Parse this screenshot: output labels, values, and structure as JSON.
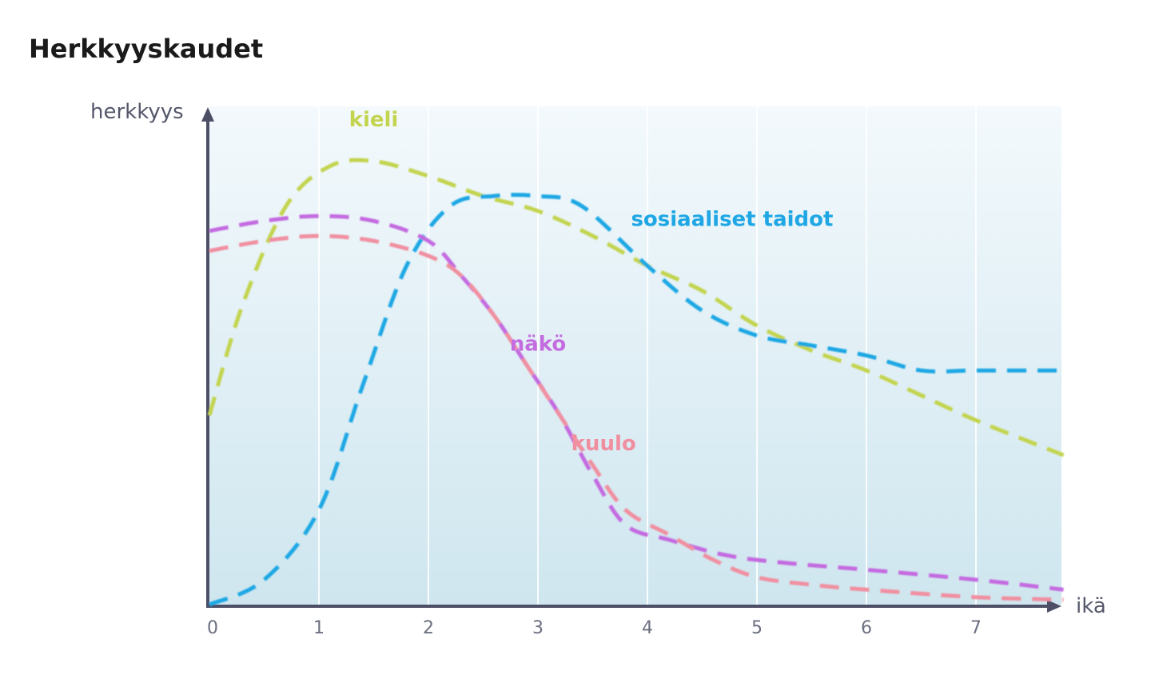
{
  "chart_data": {
    "type": "line",
    "title": "Herkkyyskaudet",
    "xlabel": "ikä",
    "ylabel": "herkkyys",
    "xlim": [
      0,
      7.8
    ],
    "ylim": [
      0,
      100
    ],
    "x_ticks": [
      "0",
      "1",
      "2",
      "3",
      "4",
      "5",
      "6",
      "7"
    ],
    "grid": true,
    "series": [
      {
        "name": "kieli",
        "color": "#c3d44f",
        "points": [
          [
            0,
            38
          ],
          [
            0.3,
            60
          ],
          [
            0.7,
            80
          ],
          [
            1.1,
            88
          ],
          [
            1.5,
            89
          ],
          [
            2,
            86
          ],
          [
            2.5,
            82
          ],
          [
            3,
            79
          ],
          [
            3.5,
            74
          ],
          [
            4,
            68
          ],
          [
            4.5,
            63
          ],
          [
            5,
            56
          ],
          [
            5.5,
            51
          ],
          [
            6,
            47
          ],
          [
            6.5,
            42
          ],
          [
            7,
            37
          ],
          [
            7.8,
            30
          ]
        ]
      },
      {
        "name": "sosiaaliset taidot",
        "color": "#1ea7e4",
        "points": [
          [
            0,
            0
          ],
          [
            0.5,
            5
          ],
          [
            1,
            19
          ],
          [
            1.4,
            44
          ],
          [
            1.8,
            68
          ],
          [
            2.2,
            80
          ],
          [
            2.6,
            82
          ],
          [
            3,
            82
          ],
          [
            3.4,
            80
          ],
          [
            4,
            68
          ],
          [
            4.5,
            59
          ],
          [
            5,
            54
          ],
          [
            5.5,
            52
          ],
          [
            6,
            50
          ],
          [
            6.5,
            47
          ],
          [
            7,
            47
          ],
          [
            7.8,
            47
          ]
        ]
      },
      {
        "name": "näkö",
        "color": "#c46be0",
        "points": [
          [
            0,
            75
          ],
          [
            0.5,
            77
          ],
          [
            1,
            78
          ],
          [
            1.5,
            77
          ],
          [
            2,
            73
          ],
          [
            2.3,
            66
          ],
          [
            2.6,
            58
          ],
          [
            2.9,
            48
          ],
          [
            3.2,
            38
          ],
          [
            3.5,
            26
          ],
          [
            3.8,
            16
          ],
          [
            4.2,
            13
          ],
          [
            4.7,
            10
          ],
          [
            5.2,
            8.5
          ],
          [
            6,
            7
          ],
          [
            7,
            5
          ],
          [
            7.8,
            3
          ]
        ]
      },
      {
        "name": "kuulo",
        "color": "#f08fa0",
        "points": [
          [
            0,
            71
          ],
          [
            0.5,
            73
          ],
          [
            1,
            74
          ],
          [
            1.5,
            73
          ],
          [
            2,
            70
          ],
          [
            2.3,
            66
          ],
          [
            2.6,
            58
          ],
          [
            2.9,
            48
          ],
          [
            3.2,
            38
          ],
          [
            3.5,
            28
          ],
          [
            3.8,
            19
          ],
          [
            4.2,
            14
          ],
          [
            4.6,
            9
          ],
          [
            5,
            5.5
          ],
          [
            5.5,
            4
          ],
          [
            6,
            3
          ],
          [
            7,
            1.5
          ],
          [
            7.8,
            1
          ]
        ]
      }
    ],
    "labels": [
      {
        "series": "kieli",
        "text": "kieli",
        "x": 1.5,
        "y": 96
      },
      {
        "series": "sosiaaliset taidot",
        "text": "sosiaaliset taidot",
        "x": 3.85,
        "y": 76
      },
      {
        "series": "näkö",
        "text": "näkö",
        "x": 3.0,
        "y": 51
      },
      {
        "series": "kuulo",
        "text": "kuulo",
        "x": 3.6,
        "y": 31
      }
    ]
  }
}
